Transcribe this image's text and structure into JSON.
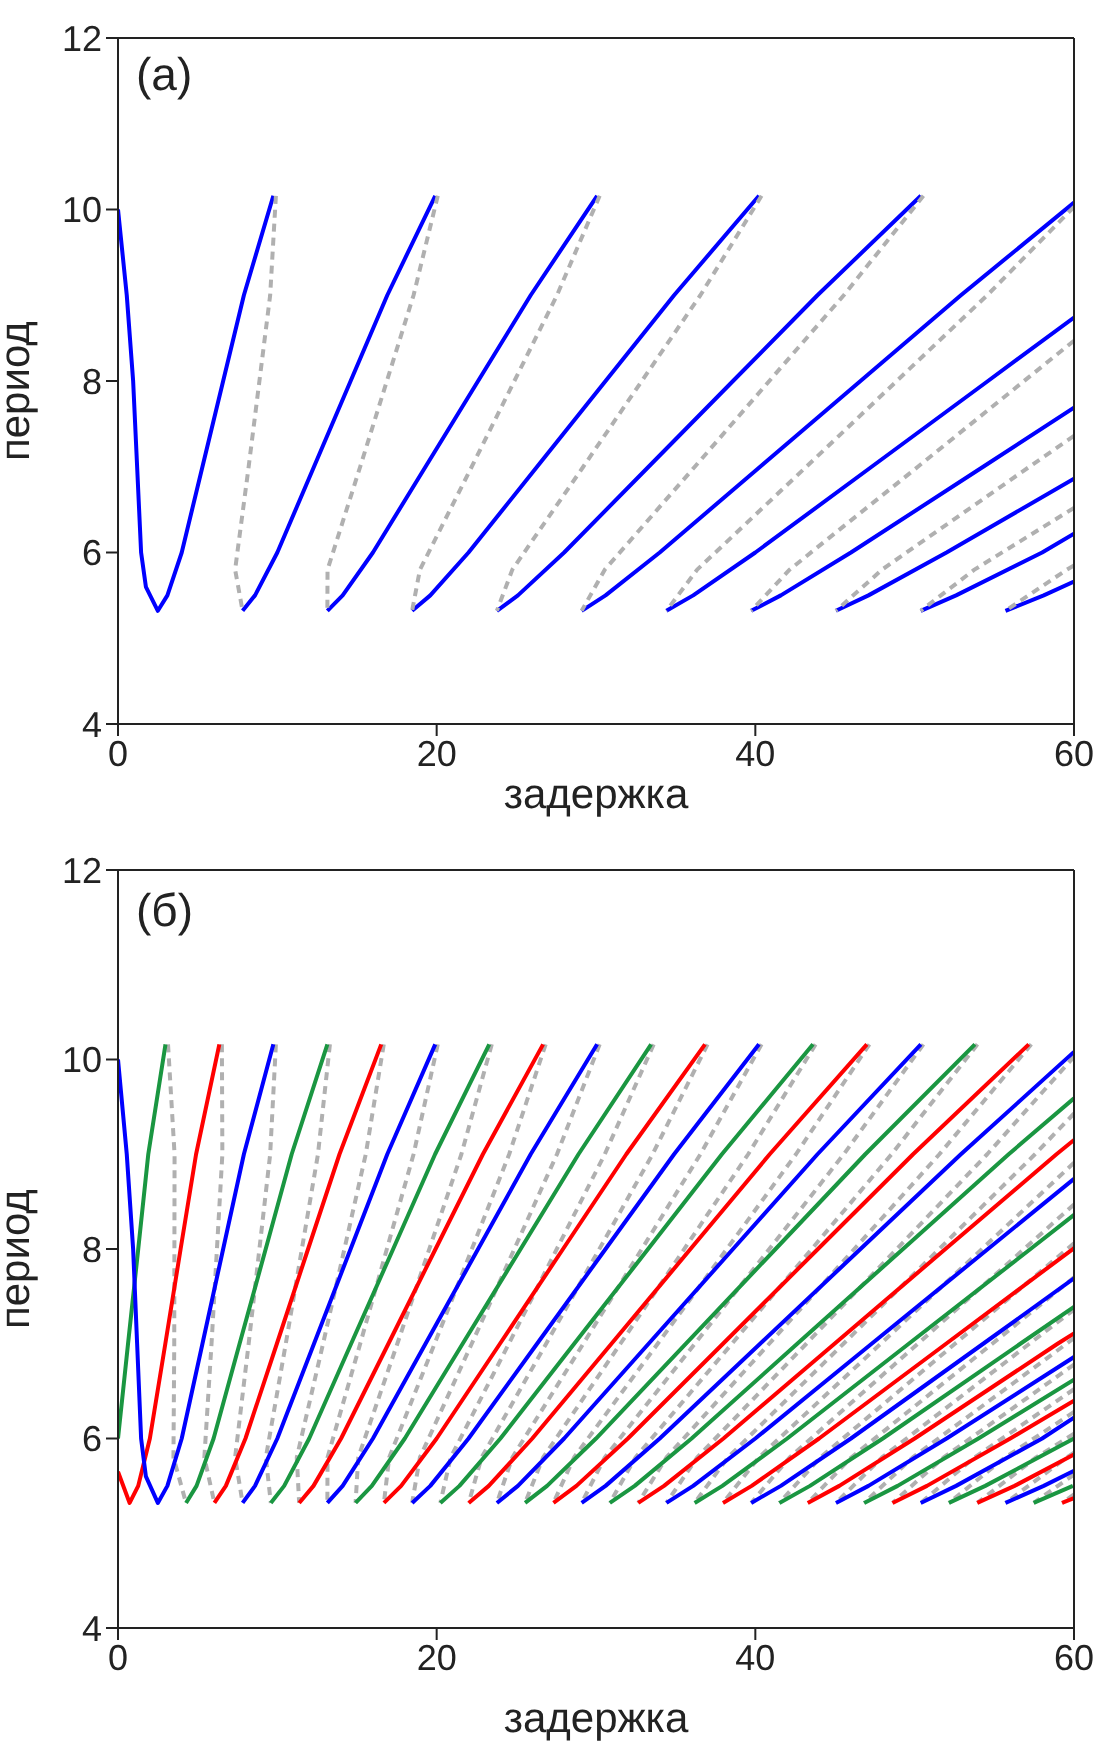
{
  "chart_data": [
    {
      "type": "line",
      "annotations": [
        "(a)"
      ],
      "xlabel": "задержка",
      "ylabel": "период",
      "xlim": [
        0,
        60
      ],
      "xticks": [
        0,
        20,
        40,
        60
      ],
      "ylim": [
        4,
        12
      ],
      "yticks": [
        4,
        6,
        8,
        10,
        12
      ],
      "series": [
        {
          "type": "line",
          "color": "#0000ff",
          "line_style": "solid",
          "x": [
            0,
            0.55,
            0.95,
            1.2,
            1.45,
            1.75,
            2.5,
            3.1,
            4,
            5.3,
            6.6,
            7.9,
            9.75
          ],
          "values": [
            10,
            9,
            8,
            7,
            6,
            5.6,
            5.32,
            5.5,
            6,
            7,
            8,
            9,
            10.16
          ]
        },
        {
          "type": "line",
          "color": "#0000ff",
          "line_style": "solid",
          "x": [
            7.82,
            8.6,
            10,
            12.3,
            14.6,
            16.9,
            19.91
          ],
          "values": [
            5.32,
            5.5,
            6,
            7,
            8,
            9,
            10.16
          ]
        },
        {
          "type": "line",
          "color": "#0000ff",
          "line_style": "solid",
          "x": [
            13.14,
            14.1,
            16,
            19.3,
            22.6,
            25.9,
            30.07
          ],
          "values": [
            5.32,
            5.5,
            6,
            7,
            8,
            9,
            10.16
          ]
        },
        {
          "type": "line",
          "color": "#0000ff",
          "line_style": "solid",
          "x": [
            18.46,
            19.6,
            22,
            26.3,
            30.6,
            34.9,
            40.23
          ],
          "values": [
            5.32,
            5.5,
            6,
            7,
            8,
            9,
            10.16
          ]
        },
        {
          "type": "line",
          "color": "#0000ff",
          "line_style": "solid",
          "x": [
            23.78,
            25.1,
            28,
            33.3,
            38.6,
            43.9,
            50.39
          ],
          "values": [
            5.32,
            5.5,
            6,
            7,
            8,
            9,
            10.16
          ]
        },
        {
          "type": "line",
          "color": "#0000ff",
          "line_style": "solid",
          "x": [
            29.1,
            30.6,
            34,
            40.3,
            46.6,
            52.9,
            60
          ],
          "values": [
            5.32,
            5.5,
            6,
            7,
            8,
            9,
            10.08
          ]
        },
        {
          "type": "line",
          "color": "#0000ff",
          "line_style": "solid",
          "x": [
            34.42,
            36.1,
            40,
            47.3,
            54.6,
            60
          ],
          "values": [
            5.32,
            5.5,
            6,
            7,
            8,
            8.74
          ]
        },
        {
          "type": "line",
          "color": "#0000ff",
          "line_style": "solid",
          "x": [
            39.74,
            41.6,
            46,
            54.3,
            60
          ],
          "values": [
            5.32,
            5.5,
            6,
            7,
            7.69
          ]
        },
        {
          "type": "line",
          "color": "#0000ff",
          "line_style": "solid",
          "x": [
            45.06,
            47.1,
            52,
            60
          ],
          "values": [
            5.32,
            5.5,
            6,
            6.86
          ]
        },
        {
          "type": "line",
          "color": "#0000ff",
          "line_style": "solid",
          "x": [
            50.38,
            52.6,
            58,
            60
          ],
          "values": [
            5.32,
            5.5,
            6,
            6.22
          ]
        },
        {
          "type": "line",
          "color": "#0000ff",
          "line_style": "solid",
          "x": [
            55.7,
            58.1,
            60
          ],
          "values": [
            5.32,
            5.5,
            5.66
          ]
        },
        {
          "type": "line",
          "color": "#b0b0b0",
          "line_style": "dashed",
          "x": [
            9.91,
            9.55,
            8.2,
            7.35,
            7.82
          ],
          "values": [
            10.16,
            9,
            7,
            5.8,
            5.32
          ]
        },
        {
          "type": "line",
          "color": "#b0b0b0",
          "line_style": "dashed",
          "x": [
            20.07,
            18.55,
            15.2,
            13.15,
            13.14
          ],
          "values": [
            10.16,
            9,
            7,
            5.8,
            5.32
          ]
        },
        {
          "type": "line",
          "color": "#b0b0b0",
          "line_style": "dashed",
          "x": [
            30.23,
            27.55,
            22.2,
            18.95,
            18.46
          ],
          "values": [
            10.16,
            9,
            7,
            5.8,
            5.32
          ]
        },
        {
          "type": "line",
          "color": "#b0b0b0",
          "line_style": "dashed",
          "x": [
            40.39,
            36.55,
            29.2,
            24.75,
            23.78
          ],
          "values": [
            10.16,
            9,
            7,
            5.8,
            5.32
          ]
        },
        {
          "type": "line",
          "color": "#b0b0b0",
          "line_style": "dashed",
          "x": [
            50.55,
            45.55,
            36.2,
            30.55,
            29.1
          ],
          "values": [
            10.16,
            9,
            7,
            5.8,
            5.32
          ]
        },
        {
          "type": "line",
          "color": "#b0b0b0",
          "line_style": "dashed",
          "x": [
            60,
            54.55,
            43.2,
            36.35,
            34.42
          ],
          "values": [
            10.03,
            9,
            7,
            5.8,
            5.32
          ]
        },
        {
          "type": "line",
          "color": "#b0b0b0",
          "line_style": "dashed",
          "x": [
            60,
            50.2,
            42.15,
            39.74
          ],
          "values": [
            8.47,
            7,
            5.8,
            5.32
          ]
        },
        {
          "type": "line",
          "color": "#b0b0b0",
          "line_style": "dashed",
          "x": [
            60,
            57.2,
            47.95,
            45.06
          ],
          "values": [
            7.36,
            7,
            5.8,
            5.32
          ]
        },
        {
          "type": "line",
          "color": "#b0b0b0",
          "line_style": "dashed",
          "x": [
            60,
            53.75,
            50.38
          ],
          "values": [
            6.52,
            5.8,
            5.32
          ]
        },
        {
          "type": "line",
          "color": "#b0b0b0",
          "line_style": "dashed",
          "x": [
            60,
            59.55,
            55.7
          ],
          "values": [
            5.85,
            5.8,
            5.32
          ]
        }
      ]
    },
    {
      "type": "line",
      "annotations": [
        "(б)"
      ],
      "xlabel": "задержка",
      "ylabel": "период",
      "xlim": [
        0,
        60
      ],
      "xticks": [
        0,
        20,
        40,
        60
      ],
      "ylim": [
        4,
        12
      ],
      "yticks": [
        4,
        6,
        8,
        10,
        12
      ],
      "series": [
        {
          "type": "line",
          "color": "#b0b0b0",
          "line_style": "dashed",
          "x": [
            3.14,
            3.55,
            3.53,
            3.48,
            4.27
          ],
          "values": [
            10.16,
            9,
            7,
            5.8,
            5.32
          ]
        },
        {
          "type": "line",
          "color": "#b0b0b0",
          "line_style": "dashed",
          "x": [
            6.52,
            6.55,
            5.87,
            5.42,
            6.05
          ],
          "values": [
            10.16,
            9,
            7,
            5.8,
            5.32
          ]
        },
        {
          "type": "line",
          "color": "#b0b0b0",
          "line_style": "dashed",
          "x": [
            9.91,
            9.55,
            8.2,
            7.35,
            7.82
          ],
          "values": [
            10.16,
            9,
            7,
            5.8,
            5.32
          ]
        },
        {
          "type": "line",
          "color": "#b0b0b0",
          "line_style": "dashed",
          "x": [
            13.3,
            12.55,
            10.53,
            9.28,
            9.59
          ],
          "values": [
            10.16,
            9,
            7,
            5.8,
            5.32
          ]
        },
        {
          "type": "line",
          "color": "#b0b0b0",
          "line_style": "dashed",
          "x": [
            16.68,
            15.55,
            12.87,
            11.22,
            11.37
          ],
          "values": [
            10.16,
            9,
            7,
            5.8,
            5.32
          ]
        },
        {
          "type": "line",
          "color": "#b0b0b0",
          "line_style": "dashed",
          "x": [
            20.07,
            18.55,
            15.2,
            13.15,
            13.14
          ],
          "values": [
            10.16,
            9,
            7,
            5.8,
            5.32
          ]
        },
        {
          "type": "line",
          "color": "#b0b0b0",
          "line_style": "dashed",
          "x": [
            23.46,
            21.55,
            17.53,
            15.08,
            14.91
          ],
          "values": [
            10.16,
            9,
            7,
            5.8,
            5.32
          ]
        },
        {
          "type": "line",
          "color": "#b0b0b0",
          "line_style": "dashed",
          "x": [
            26.84,
            24.55,
            19.87,
            17.02,
            16.69
          ],
          "values": [
            10.16,
            9,
            7,
            5.8,
            5.32
          ]
        },
        {
          "type": "line",
          "color": "#b0b0b0",
          "line_style": "dashed",
          "x": [
            30.23,
            27.55,
            22.2,
            18.95,
            18.46
          ],
          "values": [
            10.16,
            9,
            7,
            5.8,
            5.32
          ]
        },
        {
          "type": "line",
          "color": "#b0b0b0",
          "line_style": "dashed",
          "x": [
            33.62,
            30.55,
            24.53,
            20.88,
            20.23
          ],
          "values": [
            10.16,
            9,
            7,
            5.8,
            5.32
          ]
        },
        {
          "type": "line",
          "color": "#b0b0b0",
          "line_style": "dashed",
          "x": [
            37.0,
            33.55,
            26.87,
            22.82,
            22.01
          ],
          "values": [
            10.16,
            9,
            7,
            5.8,
            5.32
          ]
        },
        {
          "type": "line",
          "color": "#b0b0b0",
          "line_style": "dashed",
          "x": [
            40.39,
            36.55,
            29.2,
            24.75,
            23.78
          ],
          "values": [
            10.16,
            9,
            7,
            5.8,
            5.32
          ]
        },
        {
          "type": "line",
          "color": "#b0b0b0",
          "line_style": "dashed",
          "x": [
            43.78,
            39.55,
            31.53,
            26.68,
            25.55
          ],
          "values": [
            10.16,
            9,
            7,
            5.8,
            5.32
          ]
        },
        {
          "type": "line",
          "color": "#b0b0b0",
          "line_style": "dashed",
          "x": [
            47.16,
            42.55,
            33.87,
            28.62,
            27.33
          ],
          "values": [
            10.16,
            9,
            7,
            5.8,
            5.32
          ]
        },
        {
          "type": "line",
          "color": "#b0b0b0",
          "line_style": "dashed",
          "x": [
            50.55,
            45.55,
            36.2,
            30.55,
            29.1
          ],
          "values": [
            10.16,
            9,
            7,
            5.8,
            5.32
          ]
        },
        {
          "type": "line",
          "color": "#b0b0b0",
          "line_style": "dashed",
          "x": [
            53.94,
            48.55,
            38.53,
            32.48,
            30.87
          ],
          "values": [
            10.16,
            9,
            7,
            5.8,
            5.32
          ]
        },
        {
          "type": "line",
          "color": "#b0b0b0",
          "line_style": "dashed",
          "x": [
            57.32,
            51.55,
            40.87,
            34.42,
            32.65
          ],
          "values": [
            10.16,
            9,
            7,
            5.8,
            5.32
          ]
        },
        {
          "type": "line",
          "color": "#b0b0b0",
          "line_style": "dashed",
          "x": [
            60,
            54.55,
            43.2,
            36.35,
            34.42
          ],
          "values": [
            10.03,
            9,
            7,
            5.8,
            5.32
          ]
        },
        {
          "type": "line",
          "color": "#b0b0b0",
          "line_style": "dashed",
          "x": [
            60,
            57.55,
            45.53,
            38.28,
            36.19
          ],
          "values": [
            9.43,
            9,
            7,
            5.8,
            5.32
          ]
        },
        {
          "type": "line",
          "color": "#b0b0b0",
          "line_style": "dashed",
          "x": [
            60,
            47.87,
            40.22,
            37.97
          ],
          "values": [
            8.91,
            7,
            5.8,
            5.32
          ]
        },
        {
          "type": "line",
          "color": "#b0b0b0",
          "line_style": "dashed",
          "x": [
            60,
            50.2,
            42.15,
            39.74
          ],
          "values": [
            8.47,
            7,
            5.8,
            5.32
          ]
        },
        {
          "type": "line",
          "color": "#b0b0b0",
          "line_style": "dashed",
          "x": [
            60,
            52.53,
            44.08,
            41.51
          ],
          "values": [
            8.06,
            7,
            5.8,
            5.32
          ]
        },
        {
          "type": "line",
          "color": "#b0b0b0",
          "line_style": "dashed",
          "x": [
            60,
            54.87,
            46.02,
            43.29
          ],
          "values": [
            7.7,
            7,
            5.8,
            5.32
          ]
        },
        {
          "type": "line",
          "color": "#b0b0b0",
          "line_style": "dashed",
          "x": [
            60,
            57.2,
            47.95,
            45.06
          ],
          "values": [
            7.36,
            7,
            5.8,
            5.32
          ]
        },
        {
          "type": "line",
          "color": "#b0b0b0",
          "line_style": "dashed",
          "x": [
            60,
            59.53,
            49.88,
            46.83
          ],
          "values": [
            7.06,
            7,
            5.8,
            5.32
          ]
        },
        {
          "type": "line",
          "color": "#b0b0b0",
          "line_style": "dashed",
          "x": [
            60,
            51.82,
            48.61
          ],
          "values": [
            6.78,
            5.8,
            5.32
          ]
        },
        {
          "type": "line",
          "color": "#b0b0b0",
          "line_style": "dashed",
          "x": [
            60,
            53.75,
            50.38
          ],
          "values": [
            6.52,
            5.8,
            5.32
          ]
        },
        {
          "type": "line",
          "color": "#b0b0b0",
          "line_style": "dashed",
          "x": [
            60,
            55.68,
            52.15
          ],
          "values": [
            6.28,
            5.8,
            5.32
          ]
        },
        {
          "type": "line",
          "color": "#b0b0b0",
          "line_style": "dashed",
          "x": [
            60,
            57.62,
            53.93
          ],
          "values": [
            6.05,
            5.8,
            5.32
          ]
        },
        {
          "type": "line",
          "color": "#b0b0b0",
          "line_style": "dashed",
          "x": [
            60,
            59.55,
            55.7
          ],
          "values": [
            5.85,
            5.8,
            5.32
          ]
        },
        {
          "type": "line",
          "color": "#b0b0b0",
          "line_style": "dashed",
          "x": [
            60,
            57.47
          ],
          "values": [
            5.62,
            5.32
          ]
        },
        {
          "type": "line",
          "color": "#b0b0b0",
          "line_style": "dashed",
          "x": [
            60,
            59.25
          ],
          "values": [
            5.41,
            5.32
          ]
        },
        {
          "type": "line",
          "color": "#1a9641",
          "line_style": "solid",
          "x": [
            0,
            0.63,
            1.27,
            1.9,
            2.98
          ],
          "values": [
            6,
            7,
            8,
            9,
            10.16
          ]
        },
        {
          "type": "line",
          "color": "#ff0000",
          "line_style": "solid",
          "x": [
            0,
            0.73,
            1.27,
            2,
            2.97,
            3.93,
            4.9,
            6.36
          ],
          "values": [
            5.65,
            5.32,
            5.5,
            6,
            7,
            8,
            9,
            10.16
          ]
        },
        {
          "type": "line",
          "color": "#0000ff",
          "line_style": "solid",
          "x": [
            0,
            0.55,
            0.95,
            1.2,
            1.45,
            1.75,
            2.5,
            3.1,
            4,
            5.3,
            6.6,
            7.9,
            9.75
          ],
          "values": [
            10,
            9,
            8,
            7,
            6,
            5.6,
            5.32,
            5.5,
            6,
            7,
            8,
            9,
            10.16
          ]
        },
        {
          "type": "line",
          "color": "#1a9641",
          "line_style": "solid",
          "x": [
            4.27,
            4.93,
            6,
            7.63,
            9.27,
            10.9,
            13.14
          ],
          "values": [
            5.32,
            5.5,
            6,
            7,
            8,
            9,
            10.16
          ]
        },
        {
          "type": "line",
          "color": "#ff0000",
          "line_style": "solid",
          "x": [
            6.05,
            6.77,
            8,
            9.97,
            11.93,
            13.9,
            16.52
          ],
          "values": [
            5.32,
            5.5,
            6,
            7,
            8,
            9,
            10.16
          ]
        },
        {
          "type": "line",
          "color": "#0000ff",
          "line_style": "solid",
          "x": [
            7.82,
            8.6,
            10,
            12.3,
            14.6,
            16.9,
            19.91
          ],
          "values": [
            5.32,
            5.5,
            6,
            7,
            8,
            9,
            10.16
          ]
        },
        {
          "type": "line",
          "color": "#1a9641",
          "line_style": "solid",
          "x": [
            9.59,
            10.43,
            12,
            14.63,
            17.27,
            19.9,
            23.3
          ],
          "values": [
            5.32,
            5.5,
            6,
            7,
            8,
            9,
            10.16
          ]
        },
        {
          "type": "line",
          "color": "#ff0000",
          "line_style": "solid",
          "x": [
            11.37,
            12.27,
            14,
            16.97,
            19.93,
            22.9,
            26.68
          ],
          "values": [
            5.32,
            5.5,
            6,
            7,
            8,
            9,
            10.16
          ]
        },
        {
          "type": "line",
          "color": "#0000ff",
          "line_style": "solid",
          "x": [
            13.14,
            14.1,
            16,
            19.3,
            22.6,
            25.9,
            30.07
          ],
          "values": [
            5.32,
            5.5,
            6,
            7,
            8,
            9,
            10.16
          ]
        },
        {
          "type": "line",
          "color": "#1a9641",
          "line_style": "solid",
          "x": [
            14.91,
            15.93,
            18,
            21.63,
            25.27,
            28.9,
            33.46
          ],
          "values": [
            5.32,
            5.5,
            6,
            7,
            8,
            9,
            10.16
          ]
        },
        {
          "type": "line",
          "color": "#ff0000",
          "line_style": "solid",
          "x": [
            16.69,
            17.77,
            20,
            23.97,
            27.93,
            31.9,
            36.84
          ],
          "values": [
            5.32,
            5.5,
            6,
            7,
            8,
            9,
            10.16
          ]
        },
        {
          "type": "line",
          "color": "#0000ff",
          "line_style": "solid",
          "x": [
            18.46,
            19.6,
            22,
            26.3,
            30.6,
            34.9,
            40.23
          ],
          "values": [
            5.32,
            5.5,
            6,
            7,
            8,
            9,
            10.16
          ]
        },
        {
          "type": "line",
          "color": "#1a9641",
          "line_style": "solid",
          "x": [
            20.23,
            21.43,
            24,
            28.63,
            33.27,
            37.9,
            43.62
          ],
          "values": [
            5.32,
            5.5,
            6,
            7,
            8,
            9,
            10.16
          ]
        },
        {
          "type": "line",
          "color": "#ff0000",
          "line_style": "solid",
          "x": [
            22.01,
            23.27,
            26,
            30.97,
            35.93,
            40.9,
            47.0
          ],
          "values": [
            5.32,
            5.5,
            6,
            7,
            8,
            9,
            10.16
          ]
        },
        {
          "type": "line",
          "color": "#0000ff",
          "line_style": "solid",
          "x": [
            23.78,
            25.1,
            28,
            33.3,
            38.6,
            43.9,
            50.39
          ],
          "values": [
            5.32,
            5.5,
            6,
            7,
            8,
            9,
            10.16
          ]
        },
        {
          "type": "line",
          "color": "#1a9641",
          "line_style": "solid",
          "x": [
            25.55,
            26.93,
            30,
            35.63,
            41.27,
            46.9,
            53.78
          ],
          "values": [
            5.32,
            5.5,
            6,
            7,
            8,
            9,
            10.16
          ]
        },
        {
          "type": "line",
          "color": "#ff0000",
          "line_style": "solid",
          "x": [
            27.33,
            28.77,
            32,
            37.97,
            43.93,
            49.9,
            57.16
          ],
          "values": [
            5.32,
            5.5,
            6,
            7,
            8,
            9,
            10.16
          ]
        },
        {
          "type": "line",
          "color": "#0000ff",
          "line_style": "solid",
          "x": [
            29.1,
            30.6,
            34,
            40.3,
            46.6,
            52.9,
            60
          ],
          "values": [
            5.32,
            5.5,
            6,
            7,
            8,
            9,
            10.08
          ]
        },
        {
          "type": "line",
          "color": "#1a9641",
          "line_style": "solid",
          "x": [
            30.87,
            32.43,
            36,
            42.63,
            49.27,
            55.9,
            60
          ],
          "values": [
            5.32,
            5.5,
            6,
            7,
            8,
            9,
            9.59
          ]
        },
        {
          "type": "line",
          "color": "#ff0000",
          "line_style": "solid",
          "x": [
            32.65,
            34.27,
            38,
            44.97,
            51.93,
            58.9,
            60
          ],
          "values": [
            5.32,
            5.5,
            6,
            7,
            8,
            9,
            9.15
          ]
        },
        {
          "type": "line",
          "color": "#0000ff",
          "line_style": "solid",
          "x": [
            34.42,
            36.1,
            40,
            47.3,
            54.6,
            60
          ],
          "values": [
            5.32,
            5.5,
            6,
            7,
            8,
            8.74
          ]
        },
        {
          "type": "line",
          "color": "#1a9641",
          "line_style": "solid",
          "x": [
            36.19,
            37.93,
            42,
            49.63,
            57.27,
            60
          ],
          "values": [
            5.32,
            5.5,
            6,
            7,
            8,
            8.36
          ]
        },
        {
          "type": "line",
          "color": "#ff0000",
          "line_style": "solid",
          "x": [
            37.97,
            39.77,
            44,
            51.97,
            59.93,
            60
          ],
          "values": [
            5.32,
            5.5,
            6,
            7,
            8,
            8.01
          ]
        },
        {
          "type": "line",
          "color": "#0000ff",
          "line_style": "solid",
          "x": [
            39.74,
            41.6,
            46,
            54.3,
            60
          ],
          "values": [
            5.32,
            5.5,
            6,
            7,
            7.69
          ]
        },
        {
          "type": "line",
          "color": "#1a9641",
          "line_style": "solid",
          "x": [
            41.51,
            43.43,
            48,
            56.63,
            60
          ],
          "values": [
            5.32,
            5.5,
            6,
            7,
            7.39
          ]
        },
        {
          "type": "line",
          "color": "#ff0000",
          "line_style": "solid",
          "x": [
            43.29,
            45.27,
            50,
            58.97,
            60
          ],
          "values": [
            5.32,
            5.5,
            6,
            7,
            7.11
          ]
        },
        {
          "type": "line",
          "color": "#0000ff",
          "line_style": "solid",
          "x": [
            45.06,
            47.1,
            52,
            60
          ],
          "values": [
            5.32,
            5.5,
            6,
            6.86
          ]
        },
        {
          "type": "line",
          "color": "#1a9641",
          "line_style": "solid",
          "x": [
            46.83,
            48.93,
            54,
            60
          ],
          "values": [
            5.32,
            5.5,
            6,
            6.62
          ]
        },
        {
          "type": "line",
          "color": "#ff0000",
          "line_style": "solid",
          "x": [
            48.61,
            50.77,
            56,
            60
          ],
          "values": [
            5.32,
            5.5,
            6,
            6.4
          ]
        },
        {
          "type": "line",
          "color": "#0000ff",
          "line_style": "solid",
          "x": [
            50.38,
            52.6,
            58,
            60
          ],
          "values": [
            5.32,
            5.5,
            6,
            6.22
          ]
        },
        {
          "type": "line",
          "color": "#1a9641",
          "line_style": "solid",
          "x": [
            52.15,
            54.43,
            60
          ],
          "values": [
            5.32,
            5.5,
            6
          ]
        },
        {
          "type": "line",
          "color": "#ff0000",
          "line_style": "solid",
          "x": [
            53.93,
            56.27,
            60
          ],
          "values": [
            5.32,
            5.5,
            5.83
          ]
        },
        {
          "type": "line",
          "color": "#0000ff",
          "line_style": "solid",
          "x": [
            55.7,
            58.1,
            60
          ],
          "values": [
            5.32,
            5.5,
            5.66
          ]
        },
        {
          "type": "line",
          "color": "#1a9641",
          "line_style": "solid",
          "x": [
            57.47,
            59.93
          ],
          "values": [
            5.32,
            5.5
          ]
        },
        {
          "type": "line",
          "color": "#ff0000",
          "line_style": "solid",
          "x": [
            59.25,
            60
          ],
          "values": [
            5.32,
            5.37
          ]
        }
      ]
    }
  ]
}
